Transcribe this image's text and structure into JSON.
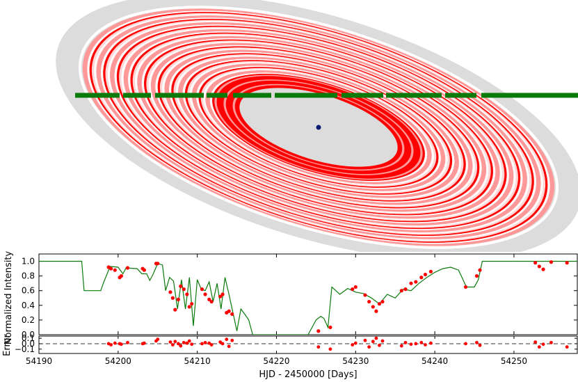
{
  "chart_data": [
    {
      "type": "diagram",
      "description_kind": "ring-system",
      "colors": {
        "disk": "#dcdcdc",
        "ring_dark": "#ff0000",
        "ring_mid": "#ff9999",
        "ring_light": "#ffd6d6",
        "gap": "#ffffff",
        "path": "#0a7a0a",
        "star": "#0a1a6e"
      }
    },
    {
      "type": "line",
      "title": "",
      "xlabel": "",
      "ylabel": "Normalized Intensity",
      "xlim": [
        54190,
        54258
      ],
      "ylim": [
        0.0,
        1.1
      ],
      "yticks": [
        "1.0",
        "0.8",
        "0.6",
        "0.4",
        "0.2",
        "0.0"
      ],
      "ytick_values": [
        1.0,
        0.8,
        0.6,
        0.4,
        0.2,
        0.0
      ],
      "grid": false,
      "series": [
        {
          "kind": "model",
          "color": "#0a7a0a",
          "x": [
            54190,
            54195.4,
            54195.7,
            54197.8,
            54198.2,
            54199,
            54200,
            54200.6,
            54201,
            54202.4,
            54203,
            54203.6,
            54204,
            54204.4,
            54205,
            54205.6,
            54206,
            54206.5,
            54207,
            54207.5,
            54208,
            54208.5,
            54209,
            54209.5,
            54210,
            54210.5,
            54211,
            54211.5,
            54212,
            54212.5,
            54213,
            54213.5,
            54214,
            54214.5,
            54215,
            54215.5,
            54216,
            54216.5,
            54217,
            54218,
            54224,
            54225,
            54225.6,
            54226,
            54226.5,
            54227,
            54227.5,
            54228,
            54229,
            54230,
            54231,
            54232,
            54233,
            54234,
            54235,
            54236,
            54237,
            54238,
            54239,
            54240,
            54241,
            54242,
            54243,
            54244,
            54245,
            54245.5,
            54246,
            54258
          ],
          "y": [
            1.0,
            1.0,
            0.6,
            0.6,
            0.72,
            0.93,
            0.92,
            0.83,
            0.91,
            0.9,
            0.83,
            0.83,
            0.74,
            0.82,
            0.97,
            0.95,
            0.6,
            0.78,
            0.73,
            0.35,
            0.75,
            0.35,
            0.78,
            0.12,
            0.75,
            0.62,
            0.6,
            0.72,
            0.45,
            0.7,
            0.35,
            0.78,
            0.55,
            0.3,
            0.05,
            0.35,
            0.28,
            0.2,
            0.0,
            0.0,
            0.0,
            0.2,
            0.25,
            0.22,
            0.1,
            0.65,
            0.6,
            0.55,
            0.63,
            0.58,
            0.56,
            0.5,
            0.42,
            0.55,
            0.5,
            0.62,
            0.6,
            0.7,
            0.78,
            0.85,
            0.9,
            0.92,
            0.88,
            0.65,
            0.65,
            0.75,
            1.0,
            1.0
          ]
        },
        {
          "kind": "observations",
          "color": "#ff0000",
          "x": [
            54198.8,
            54199.1,
            54199.6,
            54200.2,
            54200.4,
            54201.2,
            54203.1,
            54203.3,
            54204.8,
            54205.0,
            54206.6,
            54206.9,
            54207.2,
            54207.6,
            54207.9,
            54208.3,
            54208.7,
            54209.0,
            54209.3,
            54210.6,
            54211.0,
            54211.5,
            54211.8,
            54212.9,
            54213.2,
            54213.7,
            54214.0,
            54214.4,
            54225.3,
            54226.8,
            54229.6,
            54230.0,
            54231.2,
            54231.7,
            54232.2,
            54232.6,
            54233.0,
            54233.4,
            54235.8,
            54236.3,
            54237.0,
            54237.6,
            54238.3,
            54238.8,
            54239.5,
            54243.9,
            54245.3,
            54245.7,
            54252.7,
            54253.2,
            54253.7,
            54254.7,
            54256.7
          ],
          "y": [
            0.92,
            0.9,
            0.88,
            0.78,
            0.8,
            0.91,
            0.9,
            0.88,
            0.97,
            0.97,
            0.58,
            0.5,
            0.34,
            0.48,
            0.66,
            0.62,
            0.55,
            0.38,
            0.42,
            0.62,
            0.55,
            0.48,
            0.45,
            0.52,
            0.55,
            0.3,
            0.32,
            0.28,
            0.05,
            0.1,
            0.62,
            0.65,
            0.54,
            0.45,
            0.38,
            0.32,
            0.42,
            0.45,
            0.6,
            0.62,
            0.7,
            0.72,
            0.78,
            0.82,
            0.86,
            0.65,
            0.8,
            0.88,
            0.98,
            0.93,
            0.89,
            0.99,
            0.98
          ]
        }
      ]
    },
    {
      "type": "scatter",
      "xlabel": "HJD - 2450000 [Days]",
      "ylabel": "Error",
      "xlim": [
        54190,
        54258
      ],
      "ylim": [
        -0.18,
        0.14
      ],
      "xticks": [
        "54190",
        "54200",
        "54210",
        "54220",
        "54230",
        "54240",
        "54250"
      ],
      "xtick_values": [
        54190,
        54200,
        54210,
        54220,
        54230,
        54240,
        54250
      ],
      "yticks": [
        "0.1",
        "0.0",
        "−0.1"
      ],
      "ytick_values": [
        0.1,
        0.0,
        -0.1
      ],
      "zero_line": 0.0,
      "series": [
        {
          "kind": "residuals",
          "color": "#ff0000",
          "x": [
            54198.8,
            54199.1,
            54199.6,
            54200.2,
            54200.4,
            54201.2,
            54203.1,
            54203.3,
            54204.8,
            54205.0,
            54206.6,
            54206.9,
            54207.2,
            54207.6,
            54207.9,
            54208.3,
            54208.7,
            54209.0,
            54209.3,
            54210.6,
            54211.0,
            54211.5,
            54211.8,
            54212.9,
            54213.2,
            54213.7,
            54214.0,
            54214.4,
            54225.3,
            54226.8,
            54229.6,
            54230.0,
            54231.2,
            54231.7,
            54232.2,
            54232.6,
            54233.0,
            54233.4,
            54235.8,
            54236.3,
            54237.0,
            54237.6,
            54238.3,
            54238.8,
            54239.5,
            54243.9,
            54245.3,
            54245.7,
            54252.7,
            54253.2,
            54253.7,
            54254.7,
            54256.7
          ],
          "y": [
            0.0,
            -0.02,
            0.01,
            0.0,
            -0.01,
            0.02,
            0.0,
            0.01,
            0.05,
            0.08,
            0.03,
            -0.02,
            0.04,
            0.0,
            -0.04,
            0.02,
            0.01,
            0.05,
            -0.01,
            0.0,
            0.02,
            0.01,
            -0.02,
            0.03,
            0.0,
            0.08,
            -0.05,
            0.06,
            -0.06,
            -0.1,
            -0.02,
            0.01,
            0.06,
            -0.06,
            0.04,
            0.1,
            -0.03,
            0.05,
            -0.04,
            0.02,
            -0.01,
            0.0,
            0.02,
            -0.02,
            0.01,
            0.0,
            0.02,
            -0.03,
            0.03,
            -0.06,
            -0.01,
            0.02,
            -0.06
          ]
        }
      ]
    }
  ]
}
